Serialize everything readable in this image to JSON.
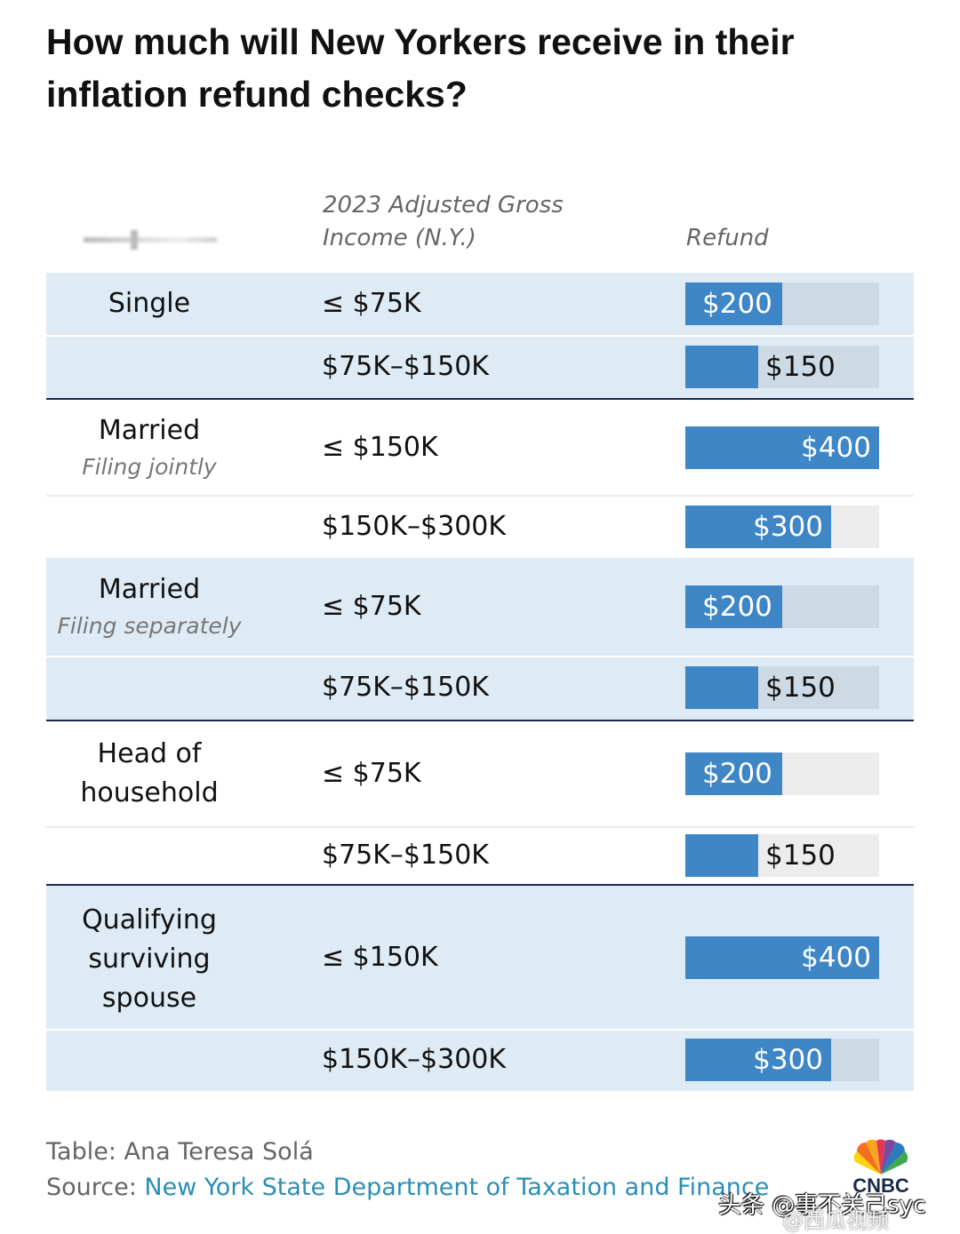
{
  "title": "How much will New Yorkers receive in their inflation refund checks?",
  "columns": {
    "filing_status": "",
    "income_line1": "2023 Adjusted Gross",
    "income_line2": "Income (N.Y.)",
    "refund": "Refund"
  },
  "chart_data": {
    "type": "table",
    "title": "How much will New Yorkers receive in their inflation refund checks?",
    "value_max": 400,
    "groups": [
      {
        "status": "Single",
        "sub": "",
        "rows": [
          {
            "income": "≤ $75K",
            "refund": 200,
            "refund_label": "$200"
          },
          {
            "income": "$75K–$150K",
            "refund": 150,
            "refund_label": "$150"
          }
        ]
      },
      {
        "status": "Married",
        "sub": "Filing jointly",
        "rows": [
          {
            "income": "≤ $150K",
            "refund": 400,
            "refund_label": "$400"
          },
          {
            "income": "$150K–$300K",
            "refund": 300,
            "refund_label": "$300"
          }
        ]
      },
      {
        "status": "Married",
        "sub": "Filing separately",
        "rows": [
          {
            "income": "≤ $75K",
            "refund": 200,
            "refund_label": "$200"
          },
          {
            "income": "$75K–$150K",
            "refund": 150,
            "refund_label": "$150"
          }
        ]
      },
      {
        "status": "Head of household",
        "sub": "",
        "rows": [
          {
            "income": "≤ $75K",
            "refund": 200,
            "refund_label": "$200"
          },
          {
            "income": "$75K–$150K",
            "refund": 150,
            "refund_label": "$150"
          }
        ]
      },
      {
        "status": "Qualifying surviving spouse",
        "sub": "",
        "rows": [
          {
            "income": "≤ $150K",
            "refund": 400,
            "refund_label": "$400"
          },
          {
            "income": "$150K–$300K",
            "refund": 300,
            "refund_label": "$300"
          }
        ]
      }
    ]
  },
  "colors": {
    "bar": "#3f86c6",
    "shade": "#deebf5",
    "rule": "#1b2a4a",
    "link": "#2a8fb8"
  },
  "credits": {
    "table_by": "Table: Ana Teresa Solá",
    "source_prefix": "Source: ",
    "source_link": "New York State Department of Taxation and Finance"
  },
  "logo": {
    "text": "CNBC",
    "icon": "peacock-icon"
  },
  "watermark": {
    "line1": "头条 @事不关己syc",
    "line2": "@西瓜视频"
  }
}
